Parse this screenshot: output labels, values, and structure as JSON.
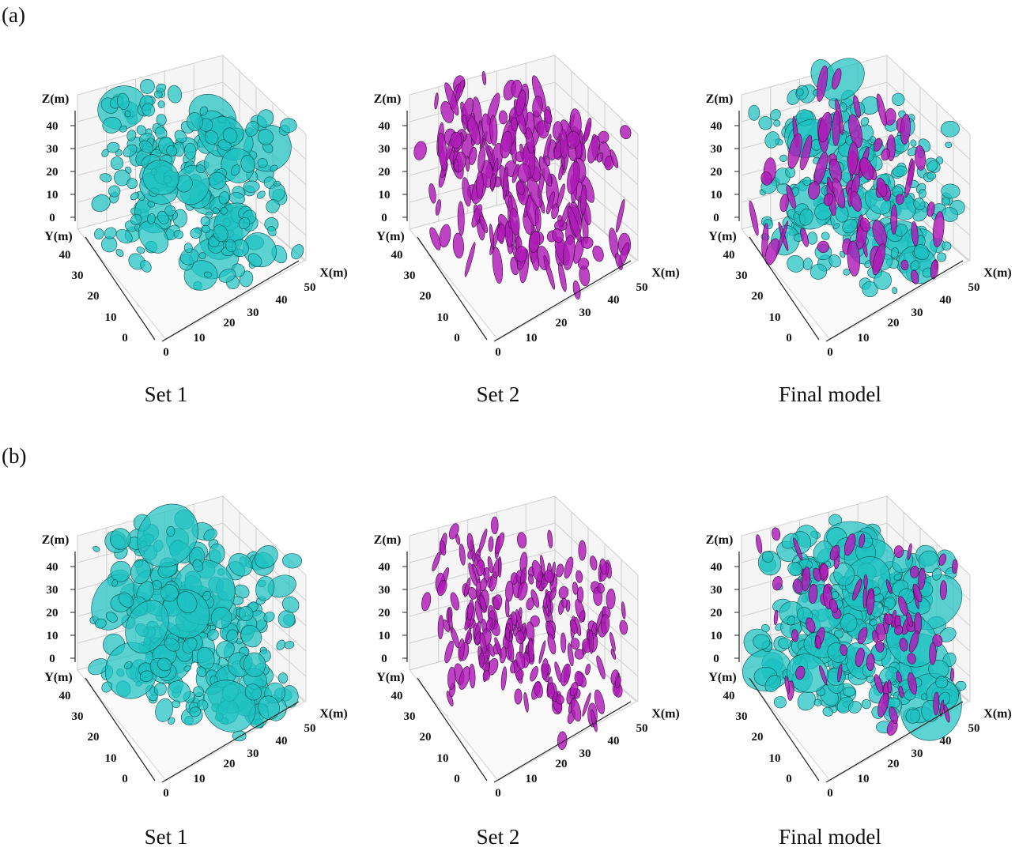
{
  "figure": {
    "rows": [
      {
        "label": "(a)",
        "panels": [
          {
            "caption": "Set 1",
            "sets": [
              "set1"
            ]
          },
          {
            "caption": "Set 2",
            "sets": [
              "set2"
            ]
          },
          {
            "caption": "Final model",
            "sets": [
              "set1",
              "set2"
            ]
          }
        ]
      },
      {
        "label": "(b)",
        "panels": [
          {
            "caption": "Set 1",
            "sets": [
              "set1"
            ]
          },
          {
            "caption": "Set 2",
            "sets": [
              "set2"
            ]
          },
          {
            "caption": "Final model",
            "sets": [
              "set1",
              "set2"
            ]
          }
        ]
      }
    ],
    "axes": {
      "z_label": "Z(m)",
      "y_label": "Y(m)",
      "x_label": "X(m)",
      "z_ticks": [
        "0",
        "10",
        "20",
        "30",
        "40"
      ],
      "y_ticks": [
        "0",
        "10",
        "20",
        "30",
        "40"
      ],
      "x_ticks": [
        "0",
        "10",
        "20",
        "30",
        "40",
        "50"
      ]
    },
    "colors": {
      "set1_fill": "#1fc2c2",
      "set1_edge": "#0b4f4f",
      "set2_fill": "#b01bb8",
      "set2_edge": "#3d0a40",
      "grid": "#cfcfcf",
      "pane": "#f5f5f5"
    }
  }
}
